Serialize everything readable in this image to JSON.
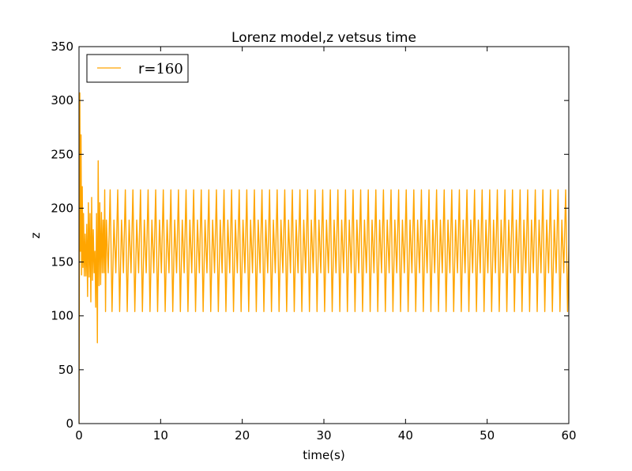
{
  "chart_data": {
    "type": "line",
    "title": "Lorenz model,z vetsus time",
    "xlabel": "time(s)",
    "ylabel": "z",
    "xlim": [
      0,
      60
    ],
    "ylim": [
      0,
      350
    ],
    "xticks": [
      "0",
      "10",
      "20",
      "30",
      "40",
      "50",
      "60"
    ],
    "yticks": [
      "0",
      "50",
      "100",
      "150",
      "200",
      "250",
      "300",
      "350"
    ],
    "grid": false,
    "legend_position": "top-left",
    "series": [
      {
        "name": "r=160",
        "legend_prefix": "r=",
        "legend_value": "160",
        "color": "#ffa500",
        "x": [
          0.0,
          0.1,
          0.18,
          0.25,
          0.32,
          0.4,
          0.48,
          0.55,
          0.65,
          0.75,
          0.85,
          0.95,
          1.05,
          1.15,
          1.25,
          1.35,
          1.45,
          1.55,
          1.65,
          1.75,
          1.85,
          1.95,
          2.05,
          2.15,
          2.25,
          2.35,
          2.45,
          2.55,
          2.65,
          2.75,
          2.85,
          2.95,
          3.05,
          3.15,
          3.25,
          3.35
        ],
        "y": [
          0,
          307,
          160,
          268,
          138,
          220,
          145,
          195,
          137,
          176,
          137,
          185,
          118,
          205,
          136,
          195,
          113,
          210,
          133,
          180,
          140,
          160,
          108,
          195,
          75,
          244,
          128,
          205,
          129,
          196,
          140,
          189,
          140,
          217,
          104,
          189
        ]
      }
    ],
    "steady_cycle": {
      "start": 3.35,
      "end": 60,
      "period": 0.93,
      "peak_values": [
        189,
        217
      ],
      "trough_values": [
        140,
        104
      ]
    }
  }
}
